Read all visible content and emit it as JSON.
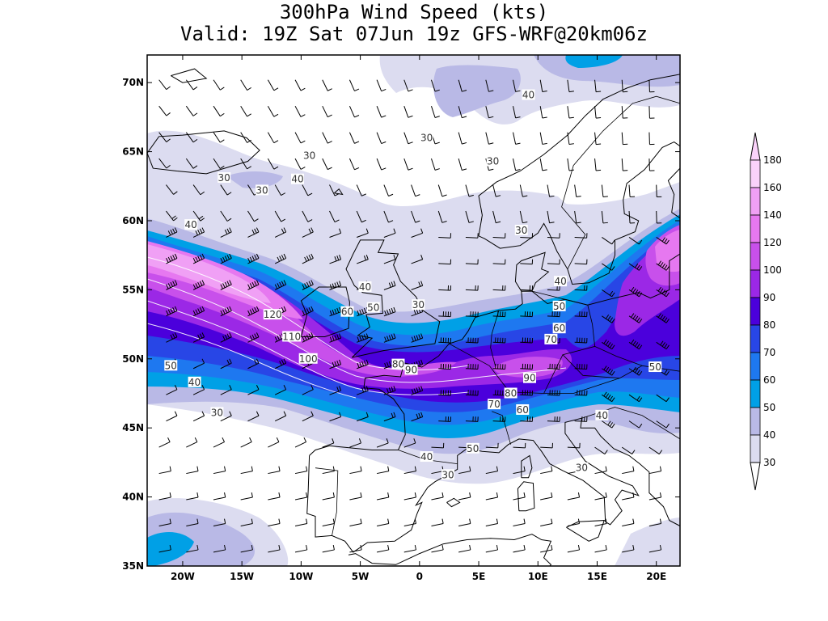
{
  "title": {
    "line1": "300hPa Wind Speed (kts)",
    "line2": "Valid: 19Z Sat 07Jun 19z GFS-WRF@20km06z"
  },
  "map": {
    "lon_range": [
      -23,
      22
    ],
    "lat_range": [
      35,
      72
    ],
    "x_ticks": [
      {
        "v": -20,
        "label": "20W"
      },
      {
        "v": -15,
        "label": "15W"
      },
      {
        "v": -10,
        "label": "10W"
      },
      {
        "v": -5,
        "label": "5W"
      },
      {
        "v": 0,
        "label": "0"
      },
      {
        "v": 5,
        "label": "5E"
      },
      {
        "v": 10,
        "label": "10E"
      },
      {
        "v": 15,
        "label": "15E"
      },
      {
        "v": 20,
        "label": "20E"
      }
    ],
    "y_ticks": [
      {
        "v": 35,
        "label": "35N"
      },
      {
        "v": 40,
        "label": "40N"
      },
      {
        "v": 45,
        "label": "45N"
      },
      {
        "v": 50,
        "label": "50N"
      },
      {
        "v": 55,
        "label": "55N"
      },
      {
        "v": 60,
        "label": "60N"
      },
      {
        "v": 65,
        "label": "65N"
      },
      {
        "v": 70,
        "label": "70N"
      }
    ]
  },
  "colorbar": {
    "levels": [
      "30",
      "40",
      "50",
      "60",
      "70",
      "80",
      "90",
      "100",
      "120",
      "140",
      "160",
      "180"
    ],
    "colors": [
      "#dcdcf0",
      "#b9b9e6",
      "#00a0e6",
      "#1e78f0",
      "#2846e6",
      "#4b00dc",
      "#9b28e6",
      "#c850eb",
      "#e678f0",
      "#f0a0f5",
      "#fad2fa"
    ]
  },
  "contour_labels": [
    {
      "lon": -16.5,
      "lat": 63.1,
      "text": "30"
    },
    {
      "lon": -9.3,
      "lat": 64.7,
      "text": "30"
    },
    {
      "lon": -10.3,
      "lat": 63.0,
      "text": "40"
    },
    {
      "lon": -13.3,
      "lat": 62.2,
      "text": "30"
    },
    {
      "lon": -19.3,
      "lat": 59.7,
      "text": "40"
    },
    {
      "lon": 0.6,
      "lat": 66.0,
      "text": "30"
    },
    {
      "lon": 6.2,
      "lat": 64.3,
      "text": "30"
    },
    {
      "lon": 9.2,
      "lat": 69.1,
      "text": "40"
    },
    {
      "lon": 8.6,
      "lat": 59.3,
      "text": "30"
    },
    {
      "lon": 11.9,
      "lat": 55.6,
      "text": "40"
    },
    {
      "lon": -4.6,
      "lat": 55.2,
      "text": "40"
    },
    {
      "lon": -3.9,
      "lat": 53.7,
      "text": "50"
    },
    {
      "lon": -6.1,
      "lat": 53.4,
      "text": "60"
    },
    {
      "lon": -0.1,
      "lat": 53.9,
      "text": "30"
    },
    {
      "lon": -12.4,
      "lat": 53.2,
      "text": "120"
    },
    {
      "lon": -10.8,
      "lat": 51.6,
      "text": "110"
    },
    {
      "lon": -9.4,
      "lat": 50.0,
      "text": "100"
    },
    {
      "lon": -21.0,
      "lat": 49.5,
      "text": "50"
    },
    {
      "lon": -19.0,
      "lat": 48.3,
      "text": "40"
    },
    {
      "lon": -17.1,
      "lat": 46.1,
      "text": "30"
    },
    {
      "lon": -1.8,
      "lat": 49.6,
      "text": "80"
    },
    {
      "lon": -0.7,
      "lat": 49.2,
      "text": "90"
    },
    {
      "lon": 9.3,
      "lat": 48.6,
      "text": "90"
    },
    {
      "lon": 7.7,
      "lat": 47.5,
      "text": "80"
    },
    {
      "lon": 6.3,
      "lat": 46.7,
      "text": "70"
    },
    {
      "lon": 8.7,
      "lat": 46.3,
      "text": "60"
    },
    {
      "lon": 11.8,
      "lat": 53.8,
      "text": "50"
    },
    {
      "lon": 11.8,
      "lat": 52.2,
      "text": "60"
    },
    {
      "lon": 11.1,
      "lat": 51.4,
      "text": "70"
    },
    {
      "lon": 19.9,
      "lat": 49.4,
      "text": "50"
    },
    {
      "lon": 15.4,
      "lat": 45.9,
      "text": "40"
    },
    {
      "lon": 13.7,
      "lat": 42.1,
      "text": "30"
    },
    {
      "lon": 4.5,
      "lat": 43.5,
      "text": "50"
    },
    {
      "lon": 0.6,
      "lat": 42.9,
      "text": "40"
    },
    {
      "lon": 2.4,
      "lat": 41.6,
      "text": "30"
    }
  ],
  "barb_field": "wind barbs on regular grid"
}
